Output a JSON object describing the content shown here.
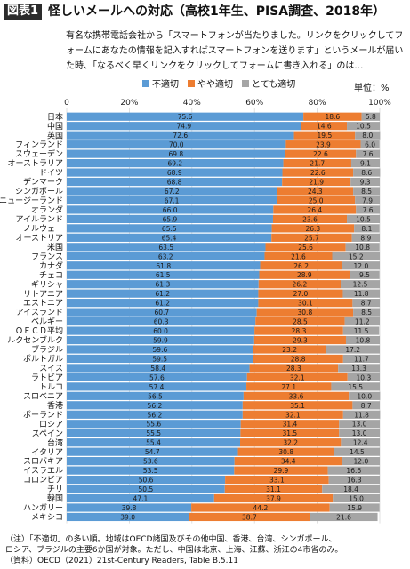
{
  "header": {
    "badge": "図表1",
    "title": "怪しいメールへの対応（高校1年生、PISA調査、2018年）"
  },
  "question": "有名な携帯電話会社から「スマートフォンが当たりました。リンクをクリックしてフォームにあなたの情報を記入すればスマートフォンを送ります」というメールが届いた時、「なるべく早くリンクをクリックしてフォームに書き入れる」のは…",
  "unit": "単位：%",
  "notes": [
    "（注）「不適切」の多い順。地域はOECD諸国及びその他中国、香港、台湾、シンガポール、",
    "ロシア、ブラジルの主要6か国が対象。ただし、中国は北京、上海、江蘇、浙江の4市省のみ。",
    "（資料）OECD（2021）21st-Century Readers, Table B.5.11"
  ],
  "colors": {
    "blue": "#5b9bd5",
    "orange": "#ed7d31",
    "gray": "#a5a5a5"
  },
  "chart_data": {
    "type": "bar",
    "orientation": "horizontal",
    "stacked": true,
    "xlim": [
      0,
      100
    ],
    "xticks": [
      "0",
      "20%",
      "40%",
      "60%",
      "80%",
      "100%"
    ],
    "legend_position": "top",
    "categories": [
      "日本",
      "中国",
      "英国",
      "フィンランド",
      "スウェーデン",
      "オーストラリア",
      "ドイツ",
      "デンマーク",
      "シンガポール",
      "ニュージーランド",
      "オランダ",
      "アイルランド",
      "ノルウェー",
      "オーストリア",
      "米国",
      "フランス",
      "カナダ",
      "チェコ",
      "ギリシャ",
      "リトアニア",
      "エストニア",
      "アイスランド",
      "ベルギー",
      "ＯＥＣＤ平均",
      "ルクセンブルク",
      "ブラジル",
      "ポルトガル",
      "スイス",
      "ラトビア",
      "トルコ",
      "スロベニア",
      "香港",
      "ポーランド",
      "ロシア",
      "スペイン",
      "台湾",
      "イタリア",
      "スロバキア",
      "イスラエル",
      "コロンビア",
      "チリ",
      "韓国",
      "ハンガリー",
      "メキシコ"
    ],
    "series": [
      {
        "name": "不適切",
        "values": [
          75.6,
          74.9,
          72.6,
          70.0,
          69.8,
          69.2,
          68.9,
          68.8,
          67.2,
          67.1,
          66.0,
          65.9,
          65.5,
          65.4,
          63.5,
          63.2,
          61.8,
          61.5,
          61.3,
          61.2,
          61.2,
          60.7,
          60.3,
          60.0,
          59.9,
          59.6,
          59.5,
          58.4,
          57.6,
          57.4,
          56.5,
          56.2,
          56.2,
          55.6,
          55.5,
          55.4,
          54.7,
          53.6,
          53.5,
          50.6,
          50.5,
          47.1,
          39.8,
          39.0
        ]
      },
      {
        "name": "やや適切",
        "values": [
          18.6,
          14.6,
          19.5,
          23.9,
          22.6,
          21.7,
          22.6,
          21.9,
          24.3,
          25.0,
          26.4,
          23.6,
          26.3,
          25.7,
          25.6,
          21.6,
          26.2,
          28.9,
          26.2,
          27.0,
          30.1,
          30.8,
          28.5,
          28.3,
          29.3,
          23.2,
          28.8,
          28.3,
          32.1,
          27.1,
          33.6,
          35.1,
          32.1,
          31.4,
          31.5,
          32.2,
          30.8,
          34.4,
          29.9,
          33.1,
          31.1,
          37.9,
          44.2,
          38.7
        ]
      },
      {
        "name": "とても適切",
        "values": [
          5.8,
          10.5,
          8.0,
          6.0,
          7.6,
          9.1,
          8.6,
          9.3,
          8.5,
          7.9,
          7.6,
          10.5,
          8.1,
          8.9,
          10.8,
          15.2,
          12.0,
          9.5,
          12.5,
          11.8,
          8.7,
          8.5,
          11.2,
          11.5,
          10.8,
          17.2,
          11.7,
          13.3,
          10.3,
          15.5,
          10.0,
          8.7,
          11.8,
          13.0,
          13.0,
          12.4,
          14.5,
          12.0,
          16.6,
          16.3,
          18.4,
          15.0,
          15.9,
          21.6
        ]
      }
    ]
  }
}
